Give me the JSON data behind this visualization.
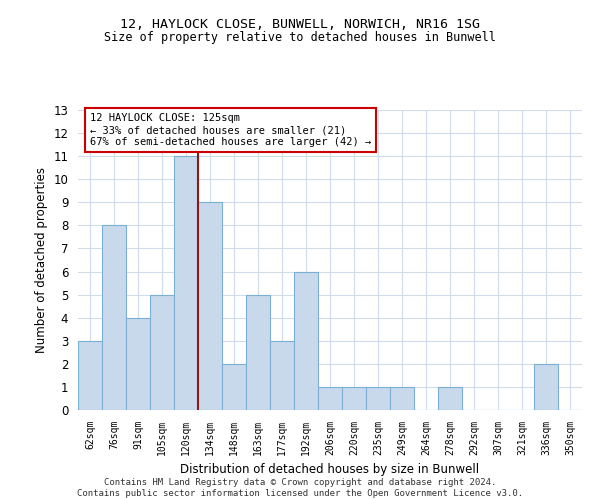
{
  "title1": "12, HAYLOCK CLOSE, BUNWELL, NORWICH, NR16 1SG",
  "title2": "Size of property relative to detached houses in Bunwell",
  "xlabel": "Distribution of detached houses by size in Bunwell",
  "ylabel": "Number of detached properties",
  "categories": [
    "62sqm",
    "76sqm",
    "91sqm",
    "105sqm",
    "120sqm",
    "134sqm",
    "148sqm",
    "163sqm",
    "177sqm",
    "192sqm",
    "206sqm",
    "220sqm",
    "235sqm",
    "249sqm",
    "264sqm",
    "278sqm",
    "292sqm",
    "307sqm",
    "321sqm",
    "336sqm",
    "350sqm"
  ],
  "values": [
    3,
    8,
    4,
    5,
    11,
    9,
    2,
    5,
    3,
    6,
    1,
    1,
    1,
    1,
    0,
    1,
    0,
    0,
    0,
    2,
    0
  ],
  "bar_color": "#c9d9ec",
  "bar_edge_color": "#7ab0d4",
  "vline_index": 4.5,
  "vline_color": "#8b1a1a",
  "annotation_line1": "12 HAYLOCK CLOSE: 125sqm",
  "annotation_line2": "← 33% of detached houses are smaller (21)",
  "annotation_line3": "67% of semi-detached houses are larger (42) →",
  "annotation_box_color": "white",
  "annotation_box_edge": "#cc0000",
  "ylim": [
    0,
    13
  ],
  "yticks": [
    0,
    1,
    2,
    3,
    4,
    5,
    6,
    7,
    8,
    9,
    10,
    11,
    12,
    13
  ],
  "footer": "Contains HM Land Registry data © Crown copyright and database right 2024.\nContains public sector information licensed under the Open Government Licence v3.0.",
  "bg_color": "white",
  "grid_color": "#d0dcea",
  "title1_fontsize": 9.5,
  "title2_fontsize": 8.5
}
